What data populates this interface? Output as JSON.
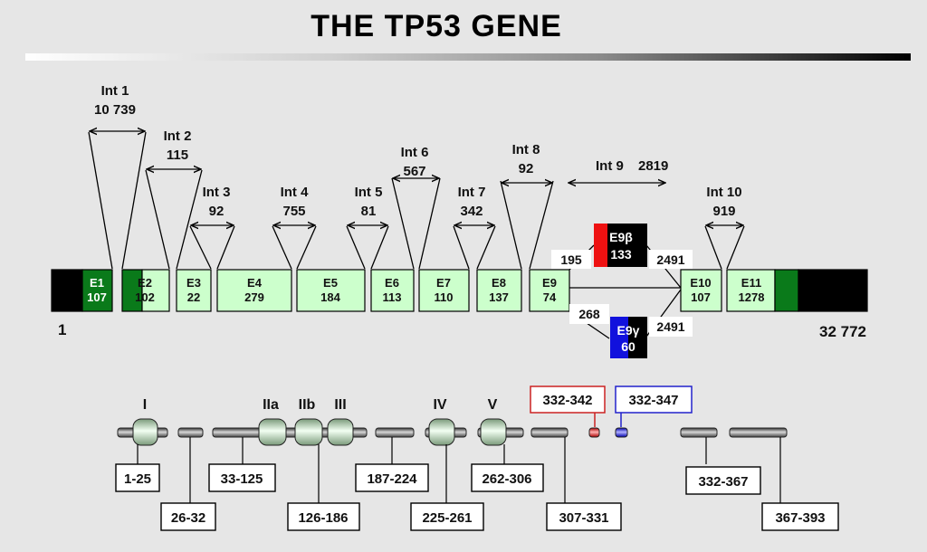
{
  "title": "THE TP53 GENE",
  "colors": {
    "background": "#e6e6e6",
    "exon_light": "#ccffcc",
    "exon_dark": "#0a7a1a",
    "flank": "#000000",
    "e9b_red": "#ee1111",
    "e9g_blue": "#1111dd"
  },
  "gene": {
    "start_label": "1",
    "end_label": "32 772"
  },
  "exons": [
    {
      "name": "E1",
      "size": "107"
    },
    {
      "name": "E2",
      "size": "102"
    },
    {
      "name": "E3",
      "size": "22"
    },
    {
      "name": "E4",
      "size": "279"
    },
    {
      "name": "E5",
      "size": "184"
    },
    {
      "name": "E6",
      "size": "113"
    },
    {
      "name": "E7",
      "size": "110"
    },
    {
      "name": "E8",
      "size": "137"
    },
    {
      "name": "E9",
      "size": "74"
    },
    {
      "name": "E10",
      "size": "107"
    },
    {
      "name": "E11",
      "size": "1278"
    }
  ],
  "introns": [
    {
      "name": "Int 1",
      "size": "10 739"
    },
    {
      "name": "Int 2",
      "size": "115"
    },
    {
      "name": "Int 3",
      "size": "92"
    },
    {
      "name": "Int 4",
      "size": "755"
    },
    {
      "name": "Int 5",
      "size": "81"
    },
    {
      "name": "Int 6",
      "size": "567"
    },
    {
      "name": "Int 7",
      "size": "342"
    },
    {
      "name": "Int 8",
      "size": "92"
    },
    {
      "name": "Int 9",
      "size": "2819"
    },
    {
      "name": "Int 10",
      "size": "919"
    }
  ],
  "alt_exons": {
    "e9b": {
      "name": "E9β",
      "size": "133",
      "left": "195",
      "right": "2491"
    },
    "e9g": {
      "name": "E9γ",
      "size": "60",
      "left": "268",
      "right": "2491"
    }
  },
  "domains": {
    "roman": [
      "I",
      "IIa",
      "IIb",
      "III",
      "IV",
      "V"
    ],
    "alt_red": "332-342",
    "alt_blue": "332-347",
    "ranges": [
      "1-25",
      "26-32",
      "33-125",
      "126-186",
      "187-224",
      "225-261",
      "262-306",
      "307-331",
      "332-367",
      "367-393"
    ]
  }
}
